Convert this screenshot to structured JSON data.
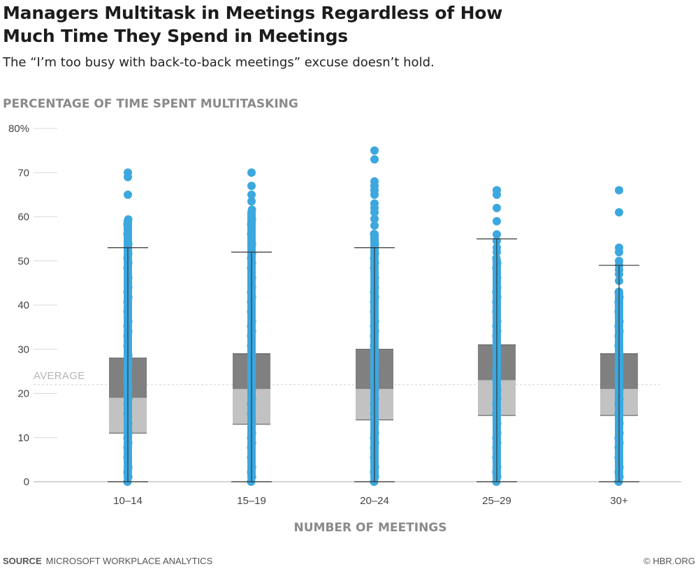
{
  "title": "Managers Multitask in Meetings Regardless of How Much Time They Spend in Meetings",
  "subtitle": "The “I’m too busy with back-to-back meetings” excuse doesn’t hold.",
  "source_label": "SOURCE",
  "source_text": "MICROSOFT WORKPLACE ANALYTICS",
  "credit": "© HBR.ORG",
  "colors": {
    "points": "#3ca8df",
    "box_upper": "#808080",
    "box_lower": "#c2c2c2",
    "axis_text": "#444444",
    "grid": "#d9d9d9"
  },
  "chart_data": {
    "type": "boxplot",
    "title": "Managers Multitask in Meetings Regardless of How Much Time They Spend in Meetings",
    "ylabel": "PERCENTAGE OF TIME SPENT MULTITASKING",
    "xlabel": "NUMBER OF MEETINGS",
    "ylim": [
      0,
      80
    ],
    "yticks": [
      0,
      10,
      20,
      30,
      40,
      50,
      60,
      70,
      80
    ],
    "ytick_labels": [
      "0",
      "10",
      "20",
      "30",
      "40",
      "50",
      "60",
      "70",
      "80%"
    ],
    "grid": true,
    "average": 22,
    "average_label": "AVERAGE",
    "categories": [
      "10–14",
      "15–19",
      "20–24",
      "25–29",
      "30+"
    ],
    "boxes": [
      {
        "category": "10–14",
        "whisker_low": 0,
        "q1": 11,
        "median": 19,
        "q3": 28,
        "whisker_high": 53,
        "dense_max": 60,
        "outliers": [
          65,
          69,
          70
        ]
      },
      {
        "category": "15–19",
        "whisker_low": 0,
        "q1": 13,
        "median": 21,
        "q3": 29,
        "whisker_high": 52,
        "dense_max": 62,
        "outliers": [
          63.5,
          65,
          67,
          70
        ]
      },
      {
        "category": "20–24",
        "whisker_low": 0,
        "q1": 14,
        "median": 21,
        "q3": 30,
        "whisker_high": 53,
        "dense_max": 57,
        "outliers": [
          58,
          59.5,
          61,
          62,
          63,
          65,
          66,
          67,
          68,
          73,
          75
        ]
      },
      {
        "category": "25–29",
        "whisker_low": 0,
        "q1": 15,
        "median": 23,
        "q3": 31,
        "whisker_high": 55,
        "dense_max": 51,
        "outliers": [
          52,
          53,
          54.5,
          56,
          59,
          62,
          65,
          66
        ]
      },
      {
        "category": "30+",
        "whisker_low": 0,
        "q1": 15,
        "median": 21,
        "q3": 29,
        "whisker_high": 49,
        "dense_max": 44,
        "outliers": [
          45.5,
          47,
          48,
          49,
          50,
          52,
          53,
          61,
          66
        ]
      }
    ]
  }
}
